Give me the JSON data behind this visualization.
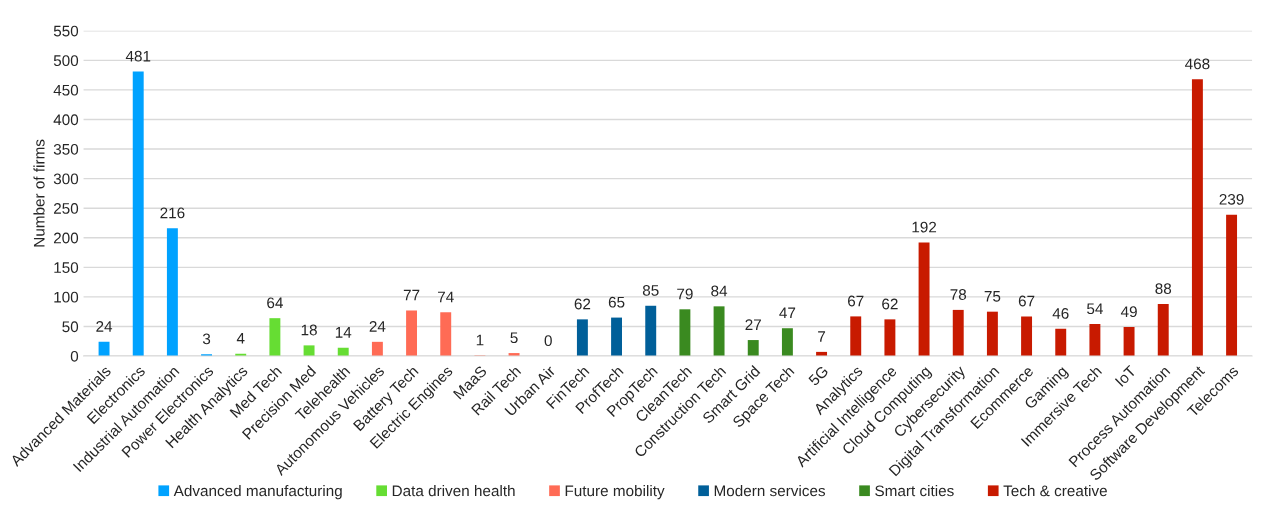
{
  "chart_data": {
    "type": "bar",
    "ylabel": "Number of firms",
    "categories": [
      "Advanced Materials",
      "Electronics",
      "Industrial Automation",
      "Power Electronics",
      "Health Analytics",
      "Med Tech",
      "Precision Med",
      "Telehealth",
      "Autonomous Vehicles",
      "Battery Tech",
      "Electric Engines",
      "MaaS",
      "Rail Tech",
      "Urban Air",
      "FinTech",
      "ProfTech",
      "PropTech",
      "CleanTech",
      "Construction Tech",
      "Smart Grid",
      "Space Tech",
      "5G",
      "Analytics",
      "Artificial Intelligence",
      "Cloud Computing",
      "Cybersecurity",
      "Digital Transformation",
      "Ecommerce",
      "Gaming",
      "Immersive Tech",
      "IoT",
      "Process Automation",
      "Software Development",
      "Telecoms"
    ],
    "series": [
      {
        "name": "Advanced manufacturing",
        "color": "#00a2ff",
        "values": [
          24,
          481,
          216,
          3,
          null,
          null,
          null,
          null,
          null,
          null,
          null,
          null,
          null,
          null,
          null,
          null,
          null,
          null,
          null,
          null,
          null,
          null,
          null,
          null,
          null,
          null,
          null,
          null,
          null,
          null,
          null,
          null,
          null,
          null
        ]
      },
      {
        "name": "Data driven health",
        "color": "#66dd33",
        "values": [
          null,
          null,
          null,
          null,
          4,
          64,
          18,
          14,
          null,
          null,
          null,
          null,
          null,
          null,
          null,
          null,
          null,
          null,
          null,
          null,
          null,
          null,
          null,
          null,
          null,
          null,
          null,
          null,
          null,
          null,
          null,
          null,
          null,
          null
        ]
      },
      {
        "name": "Future mobility",
        "color": "#ff6b55",
        "values": [
          null,
          null,
          null,
          null,
          null,
          null,
          null,
          null,
          24,
          77,
          74,
          1,
          5,
          0,
          null,
          null,
          null,
          null,
          null,
          null,
          null,
          null,
          null,
          null,
          null,
          null,
          null,
          null,
          null,
          null,
          null,
          null,
          null,
          null
        ]
      },
      {
        "name": "Modern services",
        "color": "#005f99",
        "values": [
          null,
          null,
          null,
          null,
          null,
          null,
          null,
          null,
          null,
          null,
          null,
          null,
          null,
          null,
          62,
          65,
          85,
          null,
          null,
          null,
          null,
          null,
          null,
          null,
          null,
          null,
          null,
          null,
          null,
          null,
          null,
          null,
          null,
          null
        ]
      },
      {
        "name": "Smart cities",
        "color": "#3a8a20",
        "values": [
          null,
          null,
          null,
          null,
          null,
          null,
          null,
          null,
          null,
          null,
          null,
          null,
          null,
          null,
          null,
          null,
          null,
          79,
          84,
          27,
          47,
          null,
          null,
          null,
          null,
          null,
          null,
          null,
          null,
          null,
          null,
          null,
          null,
          null
        ]
      },
      {
        "name": "Tech & creative",
        "color": "#c81a00",
        "values": [
          null,
          null,
          null,
          null,
          null,
          null,
          null,
          null,
          null,
          null,
          null,
          null,
          null,
          null,
          null,
          null,
          null,
          null,
          null,
          null,
          null,
          7,
          67,
          62,
          192,
          78,
          75,
          67,
          46,
          54,
          49,
          88,
          468,
          239
        ]
      }
    ],
    "stacked": true,
    "ylim": [
      0,
      550
    ],
    "yticks": [
      0,
      50,
      100,
      150,
      200,
      250,
      300,
      350,
      400,
      450,
      500,
      550
    ],
    "grid": "y",
    "legend": "bottom",
    "data_labels": true
  }
}
